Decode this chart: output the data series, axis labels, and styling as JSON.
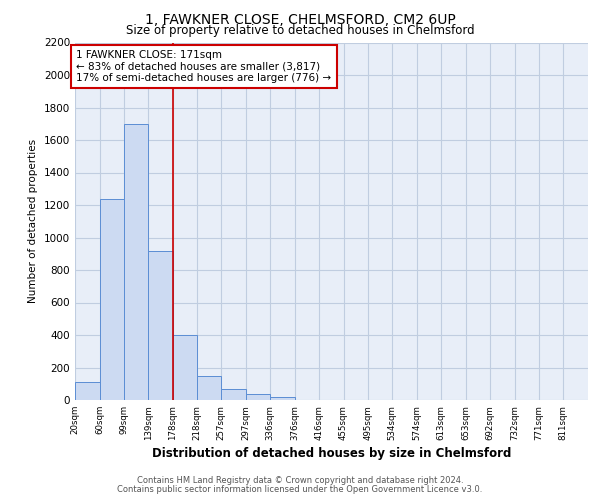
{
  "title1": "1, FAWKNER CLOSE, CHELMSFORD, CM2 6UP",
  "title2": "Size of property relative to detached houses in Chelmsford",
  "xlabel": "Distribution of detached houses by size in Chelmsford",
  "ylabel": "Number of detached properties",
  "footer1": "Contains HM Land Registry data © Crown copyright and database right 2024.",
  "footer2": "Contains public sector information licensed under the Open Government Licence v3.0.",
  "bar_edges": [
    20,
    60,
    99,
    139,
    178,
    218,
    257,
    297,
    336,
    376,
    416,
    455,
    495,
    534,
    574,
    613,
    653,
    692,
    732,
    771,
    811
  ],
  "bar_heights": [
    110,
    1240,
    1700,
    920,
    400,
    150,
    70,
    35,
    20,
    0,
    0,
    0,
    0,
    0,
    0,
    0,
    0,
    0,
    0,
    0
  ],
  "bar_color": "#ccdaf2",
  "bar_edge_color": "#5b8dd4",
  "grid_color": "#c0cde0",
  "background_color": "#e8eef8",
  "red_line_x": 178,
  "red_line_color": "#cc0000",
  "annotation_line1": "1 FAWKNER CLOSE: 171sqm",
  "annotation_line2": "← 83% of detached houses are smaller (3,817)",
  "annotation_line3": "17% of semi-detached houses are larger (776) →",
  "annotation_box_color": "#ffffff",
  "annotation_border_color": "#cc0000",
  "ylim": [
    0,
    2200
  ],
  "yticks": [
    0,
    200,
    400,
    600,
    800,
    1000,
    1200,
    1400,
    1600,
    1800,
    2000,
    2200
  ],
  "tick_labels": [
    "20sqm",
    "60sqm",
    "99sqm",
    "139sqm",
    "178sqm",
    "218sqm",
    "257sqm",
    "297sqm",
    "336sqm",
    "376sqm",
    "416sqm",
    "455sqm",
    "495sqm",
    "534sqm",
    "574sqm",
    "613sqm",
    "653sqm",
    "692sqm",
    "732sqm",
    "771sqm",
    "811sqm"
  ]
}
